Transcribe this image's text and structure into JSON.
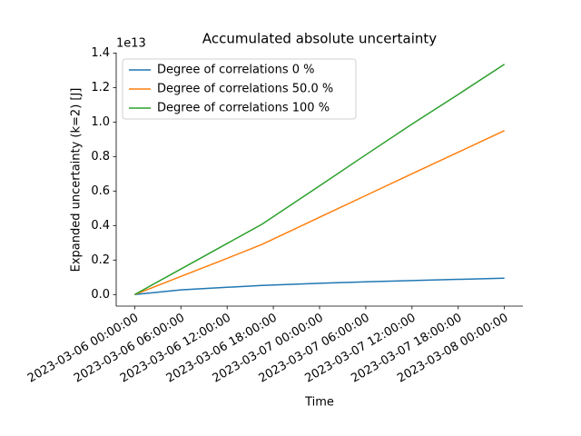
{
  "chart_data": {
    "type": "line",
    "title": "Accumulated absolute uncertainty",
    "xlabel": "Time",
    "ylabel": "Expanded uncertainty (k=2) [J]",
    "y_offset_label": "1e13",
    "x": [
      "2023-03-06 00:00:00",
      "2023-03-06 06:00:00",
      "2023-03-06 12:00:00",
      "2023-03-06 16:30:00",
      "2023-03-07 00:00:00",
      "2023-03-07 06:00:00",
      "2023-03-07 12:00:00",
      "2023-03-07 18:00:00",
      "2023-03-08 00:00:00"
    ],
    "series": [
      {
        "name": "Degree of correlations 0 %",
        "color": "#1f77b4",
        "values": [
          0,
          0.027,
          0.042,
          0.053,
          0.065,
          0.074,
          0.081,
          0.088,
          0.095
        ]
      },
      {
        "name": "Degree of correlations 50.0 %",
        "color": "#ff7f0e",
        "values": [
          0,
          0.105,
          0.21,
          0.29,
          0.448,
          0.574,
          0.7,
          0.825,
          0.95
        ]
      },
      {
        "name": "Degree of correlations 100 %",
        "color": "#2ca02c",
        "values": [
          0,
          0.148,
          0.296,
          0.407,
          0.63,
          0.81,
          0.988,
          1.16,
          1.335
        ]
      }
    ],
    "xlim": [
      "2023-03-05 21:36:00",
      "2023-03-08 02:24:00"
    ],
    "xticks": [
      "2023-03-06 00:00:00",
      "2023-03-06 06:00:00",
      "2023-03-06 12:00:00",
      "2023-03-06 18:00:00",
      "2023-03-07 00:00:00",
      "2023-03-07 06:00:00",
      "2023-03-07 12:00:00",
      "2023-03-07 18:00:00",
      "2023-03-08 00:00:00"
    ],
    "ylim": [
      -0.067,
      1.402
    ],
    "yticks": [
      {
        "value": 0,
        "label": "0.0"
      },
      0.2,
      0.4,
      0.6,
      0.8,
      {
        "value": 1,
        "label": "1.0"
      },
      1.2,
      1.4
    ],
    "legend": "upper left",
    "grid": false
  }
}
